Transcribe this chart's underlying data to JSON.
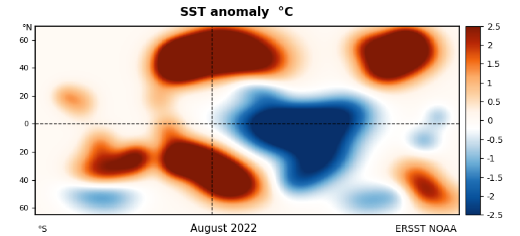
{
  "title": "SST anomaly  °C",
  "bottom_left_label": "°S",
  "top_left_label": "°N",
  "bottom_center_label": "August 2022",
  "bottom_right_label": "ERSST NOAA",
  "lon_min": 30,
  "lon_max": 390,
  "lat_min": -65,
  "lat_max": 70,
  "vmin": -2.5,
  "vmax": 2.5,
  "colorbar_ticks": [
    -2.5,
    -2,
    -1.5,
    -1,
    -0.5,
    0,
    0.5,
    1,
    1.5,
    2,
    2.5
  ],
  "dashed_line_lat": 0,
  "dashed_line_lon": 180,
  "background_color": "#ffffff",
  "figsize": [
    7.54,
    3.42
  ],
  "dpi": 100
}
